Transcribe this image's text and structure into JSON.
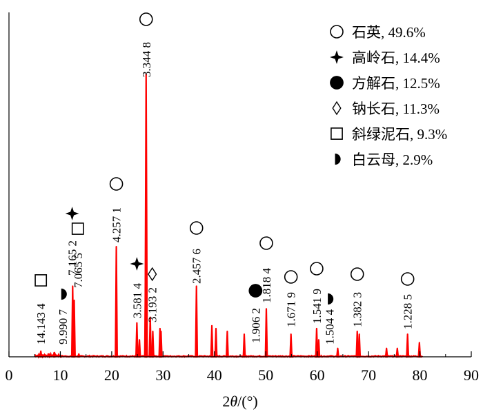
{
  "chart_data": {
    "type": "line",
    "xlabel_prefix": "2",
    "xlabel_symbol": "θ",
    "xlabel_suffix": "/(°)",
    "xlim": [
      0,
      90
    ],
    "x_ticks": [
      "0",
      "10",
      "20",
      "30",
      "40",
      "50",
      "60",
      "70",
      "80",
      "90"
    ],
    "ylabel": "",
    "grid": false,
    "legend_position": "top-right",
    "color": "#ff0000",
    "legend": [
      {
        "marker": "open-circle",
        "label": "石英, 49.6%"
      },
      {
        "marker": "four-point-star",
        "label": "高岭石, 14.4%"
      },
      {
        "marker": "filled-circle",
        "label": "方解石, 12.5%"
      },
      {
        "marker": "open-diamond",
        "label": "钠长石, 11.3%"
      },
      {
        "marker": "open-square",
        "label": "斜绿泥石, 9.3%"
      },
      {
        "marker": "half-circle",
        "label": "白云母, 2.9%"
      }
    ],
    "peaks": [
      {
        "x": 6.2,
        "h": 0.02
      },
      {
        "x": 8.8,
        "h": 0.015
      },
      {
        "x": 12.4,
        "h": 0.25
      },
      {
        "x": 12.7,
        "h": 0.2
      },
      {
        "x": 13.6,
        "h": 0.01
      },
      {
        "x": 20.9,
        "h": 0.39
      },
      {
        "x": 24.9,
        "h": 0.12
      },
      {
        "x": 25.4,
        "h": 0.06
      },
      {
        "x": 26.6,
        "h": 0.28
      },
      {
        "x": 26.7,
        "h": 1.0
      },
      {
        "x": 27.5,
        "h": 0.14
      },
      {
        "x": 28.0,
        "h": 0.09
      },
      {
        "x": 29.4,
        "h": 0.1
      },
      {
        "x": 29.6,
        "h": 0.09
      },
      {
        "x": 36.5,
        "h": 0.25
      },
      {
        "x": 39.5,
        "h": 0.11
      },
      {
        "x": 40.3,
        "h": 0.1
      },
      {
        "x": 42.5,
        "h": 0.09
      },
      {
        "x": 45.8,
        "h": 0.08
      },
      {
        "x": 50.1,
        "h": 0.17
      },
      {
        "x": 54.9,
        "h": 0.08
      },
      {
        "x": 59.9,
        "h": 0.1
      },
      {
        "x": 60.3,
        "h": 0.06
      },
      {
        "x": 64.0,
        "h": 0.03
      },
      {
        "x": 67.8,
        "h": 0.09
      },
      {
        "x": 68.2,
        "h": 0.08
      },
      {
        "x": 73.5,
        "h": 0.03
      },
      {
        "x": 75.6,
        "h": 0.03
      },
      {
        "x": 77.6,
        "h": 0.08
      },
      {
        "x": 79.9,
        "h": 0.05
      }
    ],
    "annotations": [
      {
        "x": 6.2,
        "label": "14.143 4",
        "marker": "open-square"
      },
      {
        "x": 10.5,
        "label": "9.990 7",
        "marker": "half-circle"
      },
      {
        "x": 12.3,
        "label": "7.165 2",
        "marker": "four-point-star"
      },
      {
        "x": 13.4,
        "label": "7.065 5",
        "marker": "open-square"
      },
      {
        "x": 20.9,
        "label": "4.257 1",
        "marker": "open-circle"
      },
      {
        "x": 24.9,
        "label": "3.581 4",
        "marker": "four-point-star"
      },
      {
        "x": 27.9,
        "label": "3.193 2",
        "marker": "open-diamond"
      },
      {
        "x": 26.7,
        "label": "3.344 8",
        "marker": "open-circle"
      },
      {
        "x": 36.5,
        "label": "2.457 6",
        "marker": "open-circle"
      },
      {
        "x": 48.0,
        "label": "1.906 2",
        "marker": "filled-circle"
      },
      {
        "x": 50.1,
        "label": "1.818 4",
        "marker": "open-circle"
      },
      {
        "x": 54.9,
        "label": "1.671 9",
        "marker": "open-circle"
      },
      {
        "x": 59.9,
        "label": "1.541 9",
        "marker": "open-circle"
      },
      {
        "x": 62.4,
        "label": "1.504 4",
        "marker": "half-circle"
      },
      {
        "x": 67.8,
        "label": "1.382 3",
        "marker": "open-circle"
      },
      {
        "x": 77.6,
        "label": "1.228 5",
        "marker": "open-circle"
      }
    ]
  }
}
